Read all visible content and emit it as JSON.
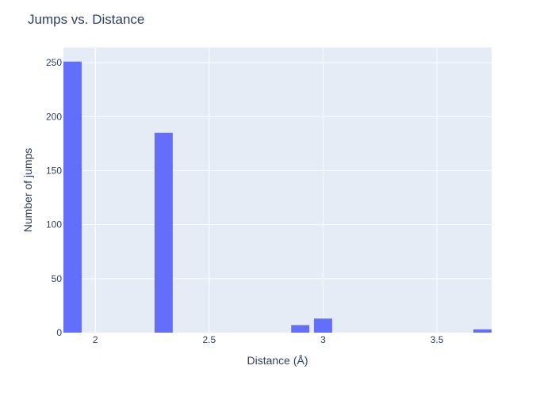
{
  "chart_data": {
    "type": "bar",
    "title": "Jumps vs. Distance",
    "xlabel": "Distance (Å)",
    "ylabel": "Number of jumps",
    "xlim": [
      1.86,
      3.74
    ],
    "ylim": [
      0,
      264
    ],
    "x_ticks": [
      2,
      2.5,
      3,
      3.5
    ],
    "x_tick_labels": [
      "2",
      "2.5",
      "3",
      "3.5"
    ],
    "y_ticks": [
      0,
      50,
      100,
      150,
      200,
      250
    ],
    "y_tick_labels": [
      "0",
      "50",
      "100",
      "150",
      "200",
      "250"
    ],
    "bar_width": 0.08,
    "bars": [
      {
        "x": 1.9,
        "y": 251
      },
      {
        "x": 2.3,
        "y": 185
      },
      {
        "x": 2.9,
        "y": 7
      },
      {
        "x": 3.0,
        "y": 13
      },
      {
        "x": 3.7,
        "y": 3
      }
    ],
    "grid": true,
    "legend": false,
    "colors": {
      "bar": "#636efa",
      "plot_bg": "#e5ecf6",
      "grid": "#ffffff",
      "text": "#2a3f5f"
    }
  }
}
